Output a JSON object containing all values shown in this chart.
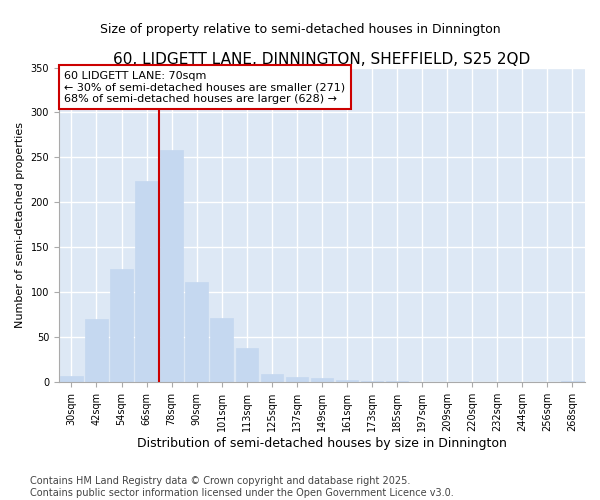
{
  "title": "60, LIDGETT LANE, DINNINGTON, SHEFFIELD, S25 2QD",
  "subtitle": "Size of property relative to semi-detached houses in Dinnington",
  "xlabel": "Distribution of semi-detached houses by size in Dinnington",
  "ylabel": "Number of semi-detached properties",
  "categories": [
    "30sqm",
    "42sqm",
    "54sqm",
    "66sqm",
    "78sqm",
    "90sqm",
    "101sqm",
    "113sqm",
    "125sqm",
    "137sqm",
    "149sqm",
    "161sqm",
    "173sqm",
    "185sqm",
    "197sqm",
    "209sqm",
    "220sqm",
    "232sqm",
    "244sqm",
    "256sqm",
    "268sqm"
  ],
  "values": [
    7,
    70,
    126,
    224,
    258,
    112,
    71,
    38,
    9,
    6,
    5,
    3,
    1,
    1,
    0,
    0,
    0,
    0,
    0,
    0,
    2
  ],
  "bar_color": "#c5d8f0",
  "bar_edge_color": "#c5d8f0",
  "vline_index": 4,
  "vline_color": "#cc0000",
  "annotation_text": "60 LIDGETT LANE: 70sqm\n← 30% of semi-detached houses are smaller (271)\n68% of semi-detached houses are larger (628) →",
  "annotation_box_facecolor": "#ffffff",
  "annotation_box_edgecolor": "#cc0000",
  "ylim": [
    0,
    350
  ],
  "yticks": [
    0,
    50,
    100,
    150,
    200,
    250,
    300,
    350
  ],
  "background_color": "#dde8f5",
  "grid_color": "#ffffff",
  "fig_background": "#ffffff",
  "footer_text": "Contains HM Land Registry data © Crown copyright and database right 2025.\nContains public sector information licensed under the Open Government Licence v3.0.",
  "title_fontsize": 11,
  "subtitle_fontsize": 9,
  "xlabel_fontsize": 9,
  "ylabel_fontsize": 8,
  "tick_fontsize": 7,
  "annotation_fontsize": 8,
  "footer_fontsize": 7
}
